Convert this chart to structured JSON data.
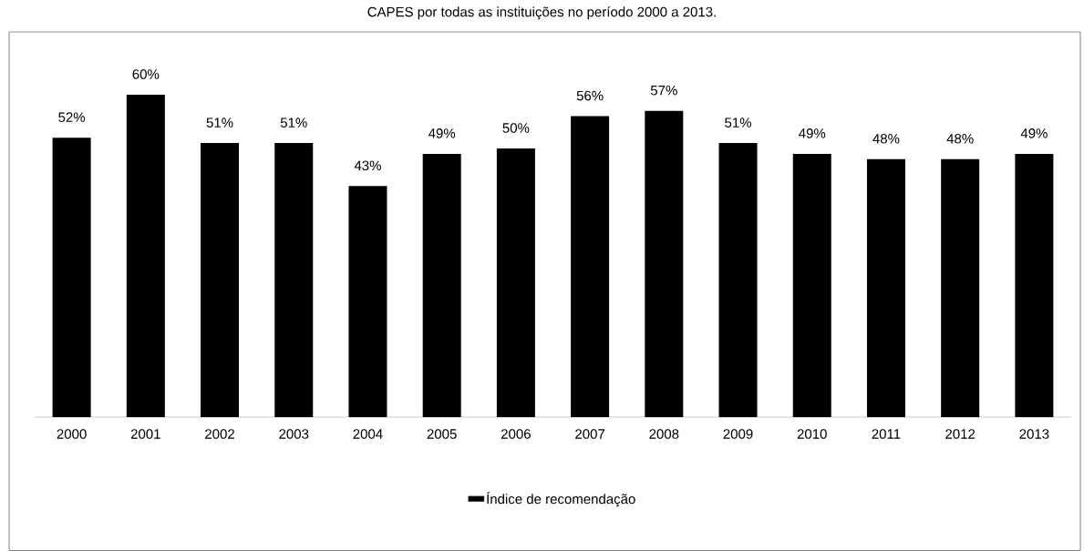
{
  "chart_data": {
    "type": "bar",
    "title": "CAPES por todas as instituições no período 2000 a 2013.",
    "categories": [
      "2000",
      "2001",
      "2002",
      "2003",
      "2004",
      "2005",
      "2006",
      "2007",
      "2008",
      "2009",
      "2010",
      "2011",
      "2012",
      "2013"
    ],
    "series": [
      {
        "name": "Índice de recomendação",
        "color": "#000000",
        "values": [
          52,
          60,
          51,
          51,
          43,
          49,
          50,
          56,
          57,
          51,
          49,
          48,
          48,
          49
        ],
        "value_labels": [
          "52%",
          "60%",
          "51%",
          "51%",
          "43%",
          "49%",
          "50%",
          "56%",
          "57%",
          "51%",
          "49%",
          "48%",
          "48%",
          "49%"
        ]
      }
    ],
    "ylim": [
      0,
      60
    ],
    "tick_labels": "x",
    "grid": false,
    "legend": "bottom"
  }
}
